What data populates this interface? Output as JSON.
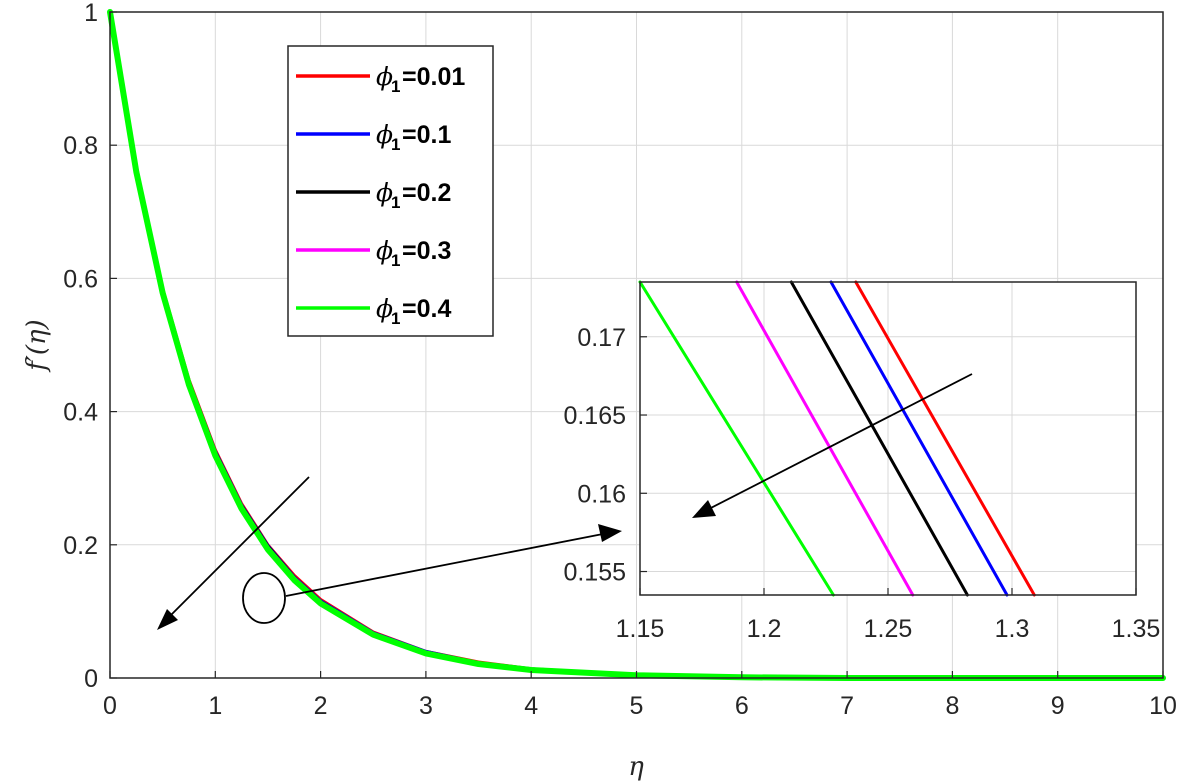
{
  "chart_data": [
    {
      "type": "line",
      "xlabel": "η",
      "ylabel": "f′(η)",
      "xlim": [
        0,
        10
      ],
      "ylim": [
        0,
        1
      ],
      "xticks": [
        "0",
        "1",
        "2",
        "3",
        "4",
        "5",
        "6",
        "7",
        "8",
        "9",
        "10"
      ],
      "yticks": [
        "0",
        "0.2",
        "0.4",
        "0.6",
        "0.8",
        "1"
      ],
      "grid": true,
      "legend_position": "top-center",
      "series": [
        {
          "name": "ϕ1=0.01",
          "color": "#ff0000",
          "x": [
            0,
            0.25,
            0.5,
            0.75,
            1,
            1.25,
            1.5,
            1.75,
            2,
            2.5,
            3,
            3.5,
            4,
            5,
            6,
            7,
            8,
            9,
            10
          ],
          "y": [
            1,
            0.765,
            0.585,
            0.448,
            0.343,
            0.262,
            0.2,
            0.154,
            0.118,
            0.069,
            0.04,
            0.024,
            0.014,
            0.005,
            0.002,
            0.001,
            0,
            0,
            0
          ]
        },
        {
          "name": "ϕ1=0.1",
          "color": "#0000ff",
          "x": [
            0,
            0.25,
            0.5,
            0.75,
            1,
            1.25,
            1.5,
            1.75,
            2,
            2.5,
            3,
            3.5,
            4,
            5,
            6,
            7,
            8,
            9,
            10
          ],
          "y": [
            1,
            0.764,
            0.584,
            0.446,
            0.341,
            0.26,
            0.199,
            0.152,
            0.116,
            0.068,
            0.04,
            0.023,
            0.014,
            0.005,
            0.002,
            0.001,
            0,
            0,
            0
          ]
        },
        {
          "name": "ϕ1=0.2",
          "color": "#000000",
          "x": [
            0,
            0.25,
            0.5,
            0.75,
            1,
            1.25,
            1.5,
            1.75,
            2,
            2.5,
            3,
            3.5,
            4,
            5,
            6,
            7,
            8,
            9,
            10
          ],
          "y": [
            1,
            0.763,
            0.583,
            0.445,
            0.34,
            0.259,
            0.198,
            0.151,
            0.115,
            0.067,
            0.039,
            0.023,
            0.013,
            0.005,
            0.002,
            0.001,
            0,
            0,
            0
          ]
        },
        {
          "name": "ϕ1=0.3",
          "color": "#ff00ff",
          "x": [
            0,
            0.25,
            0.5,
            0.75,
            1,
            1.25,
            1.5,
            1.75,
            2,
            2.5,
            3,
            3.5,
            4,
            5,
            6,
            7,
            8,
            9,
            10
          ],
          "y": [
            1,
            0.762,
            0.581,
            0.443,
            0.338,
            0.257,
            0.196,
            0.15,
            0.114,
            0.066,
            0.038,
            0.022,
            0.013,
            0.004,
            0.002,
            0.001,
            0,
            0,
            0
          ]
        },
        {
          "name": "ϕ1=0.4",
          "color": "#00ff00",
          "x": [
            0,
            0.25,
            0.5,
            0.75,
            1,
            1.25,
            1.5,
            1.75,
            2,
            2.5,
            3,
            3.5,
            4,
            5,
            6,
            7,
            8,
            9,
            10
          ],
          "y": [
            1,
            0.76,
            0.578,
            0.44,
            0.334,
            0.254,
            0.193,
            0.147,
            0.112,
            0.065,
            0.037,
            0.021,
            0.012,
            0.004,
            0.001,
            0,
            0,
            0,
            0
          ]
        }
      ]
    },
    {
      "type": "line",
      "placement": "inset",
      "xlabel": "",
      "ylabel": "",
      "xlim": [
        1.15,
        1.35
      ],
      "ylim": [
        0.1535,
        0.1735
      ],
      "xticks": [
        "1.15",
        "1.2",
        "1.25",
        "1.3",
        "1.35"
      ],
      "yticks": [
        "0.155",
        "0.16",
        "0.165",
        "0.17"
      ],
      "grid": true,
      "series": [
        {
          "name": "ϕ1=0.01",
          "color": "#ff0000",
          "x": [
            1.237,
            1.309
          ],
          "y": [
            0.1735,
            0.1535
          ]
        },
        {
          "name": "ϕ1=0.1",
          "color": "#0000ff",
          "x": [
            1.227,
            1.298
          ],
          "y": [
            0.1735,
            0.1535
          ]
        },
        {
          "name": "ϕ1=0.2",
          "color": "#000000",
          "x": [
            1.211,
            1.282
          ],
          "y": [
            0.1735,
            0.1535
          ]
        },
        {
          "name": "ϕ1=0.3",
          "color": "#ff00ff",
          "x": [
            1.189,
            1.26
          ],
          "y": [
            0.1735,
            0.1535
          ]
        },
        {
          "name": "ϕ1=0.4",
          "color": "#00ff00",
          "x": [
            1.15,
            1.228
          ],
          "y": [
            0.1735,
            0.1535
          ]
        }
      ]
    }
  ],
  "legend": {
    "items": [
      {
        "symbol": "ϕ",
        "sub": "1",
        "value": "=0.01",
        "color": "#ff0000"
      },
      {
        "symbol": "ϕ",
        "sub": "1",
        "value": "=0.1",
        "color": "#0000ff"
      },
      {
        "symbol": "ϕ",
        "sub": "1",
        "value": "=0.2",
        "color": "#000000"
      },
      {
        "symbol": "ϕ",
        "sub": "1",
        "value": "=0.3",
        "color": "#ff00ff"
      },
      {
        "symbol": "ϕ",
        "sub": "1",
        "value": "=0.4",
        "color": "#00ff00"
      }
    ]
  }
}
